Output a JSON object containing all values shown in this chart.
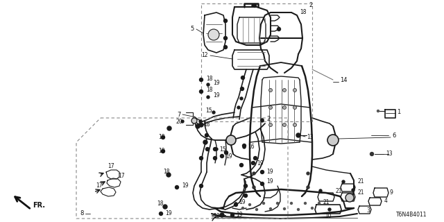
{
  "background_color": "#ffffff",
  "line_color": "#1a1a1a",
  "text_color": "#111111",
  "part_number": "T6N4B4011",
  "fig_width": 6.4,
  "fig_height": 3.2,
  "dpi": 100
}
